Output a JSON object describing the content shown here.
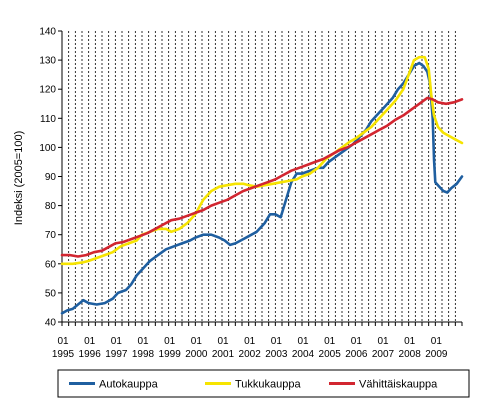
{
  "chart_data": {
    "type": "line",
    "title": "",
    "ylabel": "Indeksi (2005=100)",
    "xlabel": "",
    "ylim": [
      40,
      140
    ],
    "yticks": [
      40,
      50,
      60,
      70,
      80,
      90,
      100,
      110,
      120,
      130,
      140
    ],
    "xlim": [
      1995.0,
      2010.0
    ],
    "xtick_month_label": "01",
    "xtick_years": [
      "1995",
      "1996",
      "1997",
      "1998",
      "1999",
      "2000",
      "2001",
      "2002",
      "2003",
      "2004",
      "2005",
      "2006",
      "2007",
      "2008",
      "2009"
    ],
    "grid": {
      "vertical_dashed": true,
      "horizontal": false
    },
    "legend_position": "bottom",
    "series": [
      {
        "name": "Autokauppa",
        "color": "#1f5fa0",
        "points": [
          [
            1995.0,
            43
          ],
          [
            1995.2,
            44
          ],
          [
            1995.4,
            44.5
          ],
          [
            1995.6,
            46
          ],
          [
            1995.8,
            47.5
          ],
          [
            1996.0,
            46.5
          ],
          [
            1996.3,
            46
          ],
          [
            1996.6,
            46.5
          ],
          [
            1996.9,
            48
          ],
          [
            1997.1,
            50
          ],
          [
            1997.4,
            51
          ],
          [
            1997.6,
            53
          ],
          [
            1997.8,
            56
          ],
          [
            1998.0,
            58
          ],
          [
            1998.3,
            61
          ],
          [
            1998.6,
            63
          ],
          [
            1998.9,
            65
          ],
          [
            1999.2,
            66
          ],
          [
            1999.5,
            67
          ],
          [
            1999.8,
            68
          ],
          [
            2000.0,
            69
          ],
          [
            2000.3,
            70
          ],
          [
            2000.6,
            70
          ],
          [
            2000.9,
            69
          ],
          [
            2001.1,
            68
          ],
          [
            2001.3,
            66.5
          ],
          [
            2001.5,
            67
          ],
          [
            2001.8,
            68.5
          ],
          [
            2002.0,
            69.5
          ],
          [
            2002.3,
            71
          ],
          [
            2002.6,
            74
          ],
          [
            2002.8,
            77
          ],
          [
            2003.0,
            77
          ],
          [
            2003.2,
            76
          ],
          [
            2003.4,
            82
          ],
          [
            2003.6,
            88
          ],
          [
            2003.8,
            91
          ],
          [
            2004.0,
            91
          ],
          [
            2004.3,
            92
          ],
          [
            2004.6,
            93
          ],
          [
            2004.8,
            93
          ],
          [
            2005.0,
            95
          ],
          [
            2005.3,
            97
          ],
          [
            2005.6,
            99
          ],
          [
            2005.9,
            101
          ],
          [
            2006.1,
            103
          ],
          [
            2006.4,
            106
          ],
          [
            2006.6,
            109
          ],
          [
            2006.9,
            112
          ],
          [
            2007.1,
            114
          ],
          [
            2007.4,
            117
          ],
          [
            2007.6,
            120
          ],
          [
            2007.8,
            122
          ],
          [
            2008.0,
            125
          ],
          [
            2008.2,
            128
          ],
          [
            2008.4,
            129
          ],
          [
            2008.55,
            128
          ],
          [
            2008.7,
            126
          ],
          [
            2008.8,
            122
          ],
          [
            2008.9,
            110
          ],
          [
            2008.95,
            96
          ],
          [
            2009.0,
            88
          ],
          [
            2009.15,
            86.5
          ],
          [
            2009.3,
            85
          ],
          [
            2009.45,
            84.5
          ],
          [
            2009.6,
            86
          ],
          [
            2009.8,
            87.5
          ],
          [
            2010.0,
            90
          ]
        ]
      },
      {
        "name": "Tukkukauppa",
        "color": "#f6e400",
        "points": [
          [
            1995.0,
            60
          ],
          [
            1995.4,
            60
          ],
          [
            1995.8,
            60.5
          ],
          [
            1996.0,
            61
          ],
          [
            1996.3,
            62
          ],
          [
            1996.6,
            63
          ],
          [
            1996.9,
            64
          ],
          [
            1997.2,
            66
          ],
          [
            1997.5,
            67
          ],
          [
            1997.8,
            68
          ],
          [
            1998.0,
            70
          ],
          [
            1998.3,
            71
          ],
          [
            1998.6,
            72
          ],
          [
            1998.9,
            72
          ],
          [
            1999.1,
            71
          ],
          [
            1999.4,
            72
          ],
          [
            1999.7,
            74
          ],
          [
            2000.0,
            77
          ],
          [
            2000.3,
            82
          ],
          [
            2000.6,
            85
          ],
          [
            2000.9,
            86.5
          ],
          [
            2001.2,
            87
          ],
          [
            2001.5,
            87.5
          ],
          [
            2001.8,
            87.5
          ],
          [
            2002.0,
            87
          ],
          [
            2002.3,
            86.5
          ],
          [
            2002.6,
            87
          ],
          [
            2002.9,
            87.5
          ],
          [
            2003.2,
            88
          ],
          [
            2003.5,
            88.5
          ],
          [
            2003.8,
            89
          ],
          [
            2004.0,
            90
          ],
          [
            2004.3,
            91
          ],
          [
            2004.6,
            93
          ],
          [
            2004.9,
            96
          ],
          [
            2005.2,
            98
          ],
          [
            2005.5,
            100
          ],
          [
            2005.8,
            102
          ],
          [
            2006.0,
            103
          ],
          [
            2006.3,
            105
          ],
          [
            2006.6,
            107
          ],
          [
            2006.9,
            110
          ],
          [
            2007.2,
            113
          ],
          [
            2007.5,
            116
          ],
          [
            2007.8,
            120
          ],
          [
            2008.0,
            125
          ],
          [
            2008.2,
            130
          ],
          [
            2008.4,
            131
          ],
          [
            2008.6,
            131
          ],
          [
            2008.75,
            127
          ],
          [
            2008.85,
            118
          ],
          [
            2008.95,
            111
          ],
          [
            2009.1,
            107
          ],
          [
            2009.3,
            105
          ],
          [
            2009.5,
            104
          ],
          [
            2009.7,
            103
          ],
          [
            2010.0,
            101.5
          ]
        ]
      },
      {
        "name": "Vähittäiskauppa",
        "color": "#d22630",
        "points": [
          [
            1995.0,
            63
          ],
          [
            1995.3,
            63
          ],
          [
            1995.6,
            62.5
          ],
          [
            1995.9,
            63
          ],
          [
            1996.2,
            64
          ],
          [
            1996.5,
            64.5
          ],
          [
            1996.8,
            66
          ],
          [
            1997.0,
            67
          ],
          [
            1997.3,
            67.5
          ],
          [
            1997.6,
            68.5
          ],
          [
            1997.9,
            69.5
          ],
          [
            1998.2,
            70.5
          ],
          [
            1998.5,
            72
          ],
          [
            1998.8,
            73.5
          ],
          [
            1999.1,
            75
          ],
          [
            1999.4,
            75.5
          ],
          [
            1999.7,
            76.5
          ],
          [
            2000.0,
            77.5
          ],
          [
            2000.3,
            78.5
          ],
          [
            2000.6,
            80
          ],
          [
            2000.9,
            81
          ],
          [
            2001.2,
            82
          ],
          [
            2001.5,
            83.5
          ],
          [
            2001.8,
            85
          ],
          [
            2002.1,
            86
          ],
          [
            2002.4,
            87
          ],
          [
            2002.7,
            88
          ],
          [
            2003.0,
            89
          ],
          [
            2003.3,
            90.5
          ],
          [
            2003.6,
            92
          ],
          [
            2003.9,
            93
          ],
          [
            2004.2,
            94
          ],
          [
            2004.5,
            95
          ],
          [
            2004.8,
            96
          ],
          [
            2005.1,
            97.5
          ],
          [
            2005.4,
            99
          ],
          [
            2005.7,
            100
          ],
          [
            2006.0,
            101.5
          ],
          [
            2006.3,
            103
          ],
          [
            2006.6,
            104.5
          ],
          [
            2006.9,
            106
          ],
          [
            2007.2,
            107.5
          ],
          [
            2007.5,
            109.5
          ],
          [
            2007.8,
            111
          ],
          [
            2008.1,
            113
          ],
          [
            2008.4,
            115
          ],
          [
            2008.7,
            117
          ],
          [
            2008.9,
            116.5
          ],
          [
            2009.1,
            115.5
          ],
          [
            2009.4,
            115
          ],
          [
            2009.7,
            115.5
          ],
          [
            2010.0,
            116.5
          ]
        ]
      }
    ]
  }
}
